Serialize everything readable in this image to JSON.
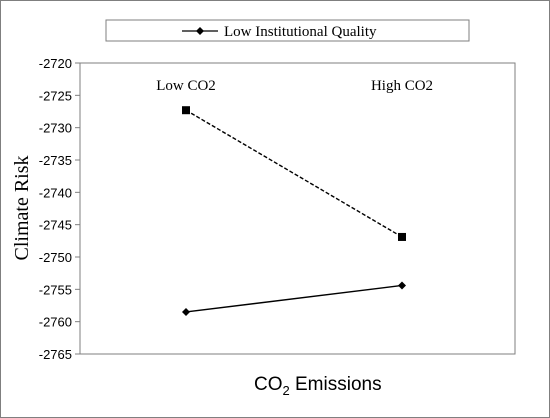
{
  "chart_data": {
    "type": "line",
    "categories": [
      "Low CO2",
      "High CO2"
    ],
    "series": [
      {
        "name": "",
        "marker": "square",
        "line_style": "dashed",
        "values": [
          -2727.3,
          -2746.9
        ]
      },
      {
        "name": "Low Institutional Quality",
        "marker": "diamond",
        "line_style": "solid",
        "values": [
          -2758.5,
          -2754.4
        ]
      }
    ],
    "ylabel": "Climate Risk",
    "xlabel_main": "CO",
    "xlabel_sub": "2",
    "xlabel_rest": " Emissions",
    "ylim": [
      -2765,
      -2720
    ],
    "yticks": [
      "-2720",
      "-2725",
      "-2730",
      "-2735",
      "-2740",
      "-2745",
      "-2750",
      "-2755",
      "-2760",
      "-2765"
    ],
    "legend_position": "top",
    "grid": false,
    "colors": {
      "line": "#000000",
      "axis": "#7f7f7f",
      "text": "#000000"
    }
  }
}
